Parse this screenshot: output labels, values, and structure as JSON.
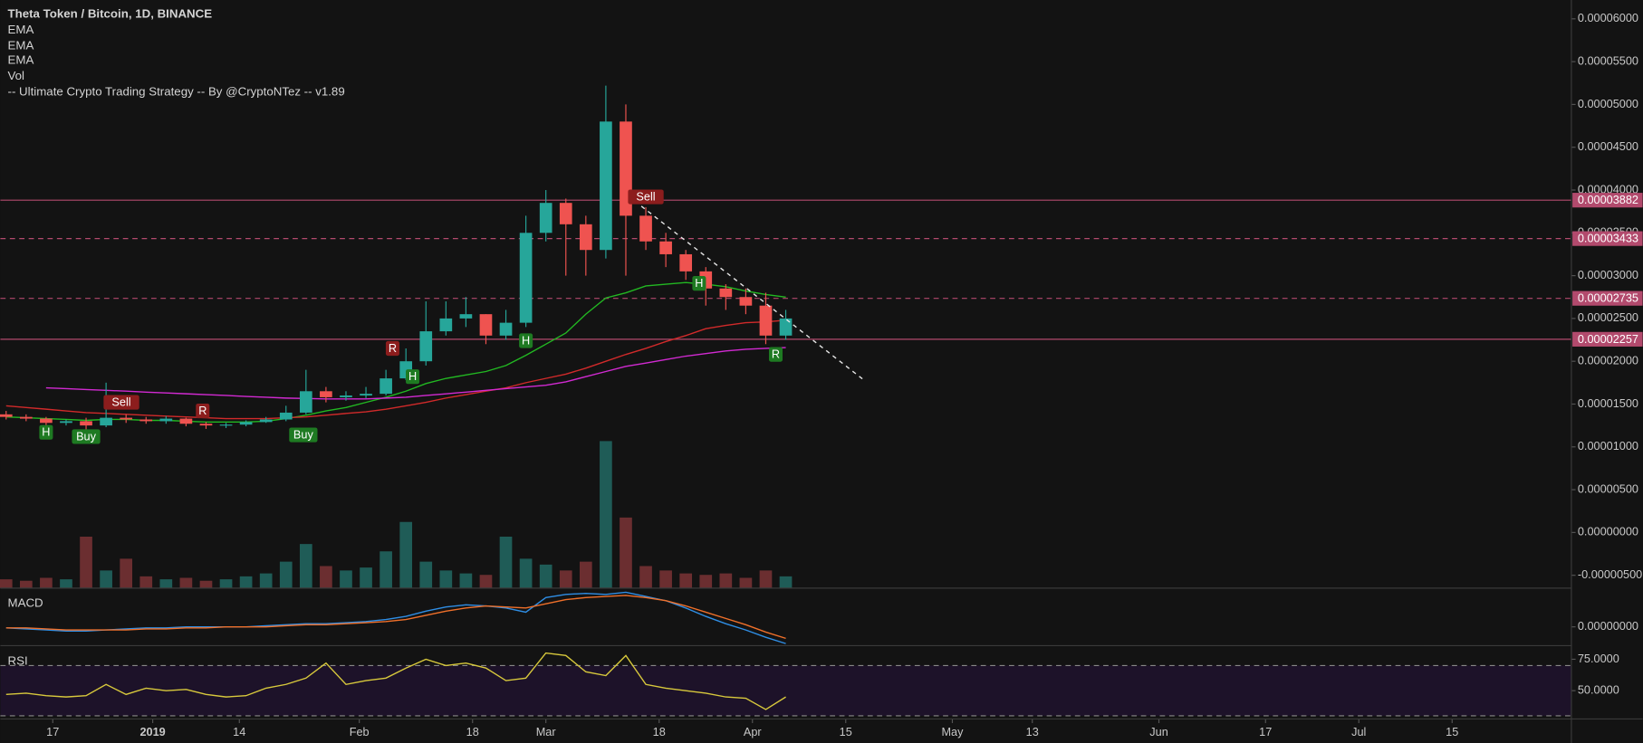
{
  "chart_data": [
    {
      "type": "candlestick",
      "title": "Theta Token / Bitcoin, 1D, BINANCE",
      "xlim": [
        -7.86,
        227.9
      ],
      "ylim": [
        -6.5e-06,
        6.22e-05
      ],
      "up_color": "#26a69a",
      "down_color": "#ef5350",
      "x": [
        -7,
        -4,
        -1,
        2,
        5,
        8,
        11,
        14,
        17,
        20,
        23,
        26,
        29,
        32,
        35,
        38,
        41,
        44,
        47,
        50,
        53,
        56,
        59,
        62,
        65,
        68,
        71,
        74,
        77,
        80,
        83,
        86,
        89,
        92,
        95,
        98,
        101,
        104,
        107,
        110
      ],
      "open": [
        1.38e-05,
        1.35e-05,
        1.33e-05,
        1.28e-05,
        1.3e-05,
        1.25e-05,
        1.34e-05,
        1.32e-05,
        1.3e-05,
        1.33e-05,
        1.27e-05,
        1.25e-05,
        1.26e-05,
        1.29e-05,
        1.32e-05,
        1.4e-05,
        1.65e-05,
        1.58e-05,
        1.6e-05,
        1.62e-05,
        1.8e-05,
        2e-05,
        2.35e-05,
        2.5e-05,
        2.55e-05,
        2.3e-05,
        2.45e-05,
        3.5e-05,
        3.85e-05,
        3.6e-05,
        3.3e-05,
        4.8e-05,
        3.7e-05,
        3.4e-05,
        3.25e-05,
        3.05e-05,
        2.85e-05,
        2.75e-05,
        2.65e-05,
        2.3e-05
      ],
      "high": [
        1.42e-05,
        1.38e-05,
        1.35e-05,
        1.32e-05,
        1.34e-05,
        1.75e-05,
        1.38e-05,
        1.35e-05,
        1.36e-05,
        1.34e-05,
        1.29e-05,
        1.28e-05,
        1.31e-05,
        1.35e-05,
        1.48e-05,
        1.9e-05,
        1.7e-05,
        1.65e-05,
        1.7e-05,
        1.9e-05,
        2.15e-05,
        2.7e-05,
        2.7e-05,
        2.75e-05,
        2.55e-05,
        2.6e-05,
        3.7e-05,
        4e-05,
        3.9e-05,
        3.7e-05,
        5.22e-05,
        5e-05,
        3.8e-05,
        3.5e-05,
        3.3e-05,
        3.1e-05,
        2.9e-05,
        2.85e-05,
        2.8e-05,
        2.6e-05
      ],
      "low": [
        1.32e-05,
        1.3e-05,
        1.24e-05,
        1.25e-05,
        1.18e-05,
        1.23e-05,
        1.28e-05,
        1.27e-05,
        1.27e-05,
        1.24e-05,
        1.21e-05,
        1.22e-05,
        1.24e-05,
        1.28e-05,
        1.3e-05,
        1.38e-05,
        1.52e-05,
        1.54e-05,
        1.57e-05,
        1.6e-05,
        1.78e-05,
        1.95e-05,
        2.3e-05,
        2.4e-05,
        2.2e-05,
        2.25e-05,
        2.4e-05,
        3.4e-05,
        3e-05,
        3e-05,
        3.2e-05,
        3e-05,
        3.3e-05,
        3.1e-05,
        2.95e-05,
        2.65e-05,
        2.6e-05,
        2.55e-05,
        2.2e-05,
        2.25e-05
      ],
      "close": [
        1.35e-05,
        1.33e-05,
        1.28e-05,
        1.3e-05,
        1.25e-05,
        1.34e-05,
        1.32e-05,
        1.3e-05,
        1.33e-05,
        1.27e-05,
        1.25e-05,
        1.26e-05,
        1.29e-05,
        1.32e-05,
        1.4e-05,
        1.65e-05,
        1.58e-05,
        1.6e-05,
        1.62e-05,
        1.8e-05,
        2e-05,
        2.35e-05,
        2.5e-05,
        2.55e-05,
        2.3e-05,
        2.45e-05,
        3.5e-05,
        3.85e-05,
        3.6e-05,
        3.3e-05,
        4.8e-05,
        3.7e-05,
        3.4e-05,
        3.25e-05,
        3.05e-05,
        2.85e-05,
        2.75e-05,
        2.65e-05,
        2.3e-05,
        2.5e-05
      ],
      "series": [
        {
          "name": "EMA",
          "color": "#22b822",
          "values": [
            1.35e-05,
            1.34e-05,
            1.33e-05,
            1.32e-05,
            1.31e-05,
            1.32e-05,
            1.32e-05,
            1.31e-05,
            1.31e-05,
            1.3e-05,
            1.29e-05,
            1.29e-05,
            1.29e-05,
            1.3e-05,
            1.33e-05,
            1.37e-05,
            1.42e-05,
            1.46e-05,
            1.52e-05,
            1.58e-05,
            1.65e-05,
            1.74e-05,
            1.8e-05,
            1.84e-05,
            1.88e-05,
            1.95e-05,
            2.07e-05,
            2.2e-05,
            2.33e-05,
            2.55e-05,
            2.74e-05,
            2.8e-05,
            2.88e-05,
            2.9e-05,
            2.92e-05,
            2.9e-05,
            2.87e-05,
            2.82e-05,
            2.78e-05,
            2.75e-05
          ]
        },
        {
          "name": "EMA",
          "color": "#d12a2a",
          "values": [
            1.48e-05,
            1.46e-05,
            1.44e-05,
            1.42e-05,
            1.4e-05,
            1.39e-05,
            1.38e-05,
            1.37e-05,
            1.36e-05,
            1.35e-05,
            1.34e-05,
            1.33e-05,
            1.33e-05,
            1.33e-05,
            1.34e-05,
            1.35e-05,
            1.37e-05,
            1.39e-05,
            1.41e-05,
            1.44e-05,
            1.48e-05,
            1.52e-05,
            1.57e-05,
            1.61e-05,
            1.65e-05,
            1.69e-05,
            1.75e-05,
            1.8e-05,
            1.85e-05,
            1.92e-05,
            2e-05,
            2.08e-05,
            2.15e-05,
            2.23e-05,
            2.3e-05,
            2.38e-05,
            2.42e-05,
            2.45e-05,
            2.46e-05,
            2.48e-05
          ]
        },
        {
          "name": "EMA",
          "color": "#d22ad2",
          "values": [
            null,
            null,
            1.69e-05,
            1.68e-05,
            1.67e-05,
            1.66e-05,
            1.65e-05,
            1.64e-05,
            1.63e-05,
            1.62e-05,
            1.61e-05,
            1.6e-05,
            1.59e-05,
            1.58e-05,
            1.57e-05,
            1.565e-05,
            1.56e-05,
            1.56e-05,
            1.56e-05,
            1.57e-05,
            1.58e-05,
            1.6e-05,
            1.62e-05,
            1.64e-05,
            1.66e-05,
            1.68e-05,
            1.7e-05,
            1.72e-05,
            1.76e-05,
            1.82e-05,
            1.88e-05,
            1.94e-05,
            1.98e-05,
            2.02e-05,
            2.06e-05,
            2.09e-05,
            2.12e-05,
            2.14e-05,
            2.15e-05,
            2.16e-05
          ]
        }
      ],
      "volume": {
        "name": "Vol",
        "ylim": [
          0,
          400
        ],
        "up_color": "#1f5c57",
        "down_color": "#6b2e30",
        "values": [
          6,
          5,
          7,
          6,
          35,
          12,
          20,
          8,
          6,
          7,
          5,
          6,
          8,
          10,
          18,
          30,
          15,
          12,
          14,
          25,
          45,
          18,
          12,
          10,
          9,
          35,
          20,
          16,
          12,
          18,
          100,
          48,
          15,
          12,
          10,
          9,
          10,
          7,
          12,
          8
        ]
      },
      "strategy": {
        "name": "-- Ultimate Crypto Trading Strategy -- By @CryptoNTez -- v1.89",
        "signals": [
          {
            "label": "H",
            "x": -1,
            "price": 1.17e-05,
            "color": "#1e7a22"
          },
          {
            "label": "Buy",
            "x": 5,
            "price": 1.12e-05,
            "color": "#1e7a22"
          },
          {
            "label": "Sell",
            "x": 10.3,
            "price": 1.52e-05,
            "color": "#8c1d1d"
          },
          {
            "label": "R",
            "x": 22.5,
            "price": 1.42e-05,
            "color": "#8c1d1d"
          },
          {
            "label": "Buy",
            "x": 37.6,
            "price": 1.14e-05,
            "color": "#1e7a22"
          },
          {
            "label": "R",
            "x": 51,
            "price": 2.15e-05,
            "color": "#8c1d1d"
          },
          {
            "label": "H",
            "x": 54,
            "price": 1.82e-05,
            "color": "#1e7a22"
          },
          {
            "label": "H",
            "x": 71,
            "price": 2.24e-05,
            "color": "#1e7a22"
          },
          {
            "label": "Sell",
            "x": 89,
            "price": 3.92e-05,
            "color": "#8c1d1d"
          },
          {
            "label": "H",
            "x": 97,
            "price": 2.91e-05,
            "color": "#1e7a22"
          },
          {
            "label": "R",
            "x": 108.5,
            "price": 2.08e-05,
            "color": "#1e7a22"
          }
        ]
      },
      "levels": [
        {
          "value": 3.882e-05,
          "style": "solid"
        },
        {
          "value": 3.433e-05,
          "style": "dashed"
        },
        {
          "value": 2.735e-05,
          "style": "dashed"
        },
        {
          "value": 2.257e-05,
          "style": "solid"
        }
      ],
      "level_color": "#b24a6d",
      "yticks": [
        {
          "value": 6e-05,
          "label": "0.00006000"
        },
        {
          "value": 5.5e-05,
          "label": "0.00005500"
        },
        {
          "value": 5e-05,
          "label": "0.00005000"
        },
        {
          "value": 4.5e-05,
          "label": "0.00004500"
        },
        {
          "value": 4e-05,
          "label": "0.00004000"
        },
        {
          "value": 3.5e-05,
          "label": "0.00003500"
        },
        {
          "value": 3e-05,
          "label": "0.00003000"
        },
        {
          "value": 2.5e-05,
          "label": "0.00002500"
        },
        {
          "value": 2e-05,
          "label": "0.00002000"
        },
        {
          "value": 1.5e-05,
          "label": "0.00001500"
        },
        {
          "value": 1e-05,
          "label": "0.00001000"
        },
        {
          "value": 5e-06,
          "label": "0.00000500"
        },
        {
          "value": 0,
          "label": "0.00000000"
        },
        {
          "value": -5e-06,
          "label": "-0.00000500"
        }
      ]
    },
    {
      "type": "line",
      "title": "MACD",
      "xlim": [
        -7.86,
        227.9
      ],
      "ylim": [
        -1.8e-06,
        3.7e-06
      ],
      "x": [
        -7,
        -4,
        -1,
        2,
        5,
        8,
        11,
        14,
        17,
        20,
        23,
        26,
        29,
        32,
        35,
        38,
        41,
        44,
        47,
        50,
        53,
        56,
        59,
        62,
        65,
        68,
        71,
        74,
        77,
        80,
        83,
        86,
        89,
        92,
        95,
        98,
        101,
        104,
        107,
        110
      ],
      "series": [
        {
          "color": "#2f8ee5",
          "values": [
            -1e-07,
            -2e-07,
            -3e-07,
            -4e-07,
            -4e-07,
            -3e-07,
            -2e-07,
            -1e-07,
            -1e-07,
            0,
            0,
            0,
            0,
            1e-07,
            2e-07,
            3e-07,
            3e-07,
            4e-07,
            5e-07,
            7e-07,
            1e-06,
            1.5e-06,
            1.9e-06,
            2.1e-06,
            2e-06,
            1.8e-06,
            1.4e-06,
            2.8e-06,
            3.1e-06,
            3.2e-06,
            3.1e-06,
            3.3e-06,
            2.9e-06,
            2.5e-06,
            1.8e-06,
            1e-06,
            3e-07,
            -3e-07,
            -1e-06,
            -1.6e-06
          ]
        },
        {
          "color": "#f0702a",
          "values": [
            -1e-07,
            -1e-07,
            -2e-07,
            -3e-07,
            -3e-07,
            -3e-07,
            -3e-07,
            -2e-07,
            -2e-07,
            -1e-07,
            -1e-07,
            0,
            0,
            0,
            1e-07,
            2e-07,
            2e-07,
            3e-07,
            4e-07,
            5e-07,
            7e-07,
            1.1e-06,
            1.5e-06,
            1.8e-06,
            2e-06,
            1.9e-06,
            1.8e-06,
            2.2e-06,
            2.6e-06,
            2.8e-06,
            2.9e-06,
            3e-06,
            2.8e-06,
            2.5e-06,
            2e-06,
            1.4e-06,
            8e-07,
            2e-07,
            -5e-07,
            -1.1e-06
          ]
        }
      ],
      "yticks": [
        {
          "value": 0,
          "label": "0.00000000"
        }
      ]
    },
    {
      "type": "line",
      "title": "RSI",
      "xlim": [
        -7.86,
        227.9
      ],
      "ylim": [
        27.5,
        85.8
      ],
      "x": [
        -7,
        -4,
        -1,
        2,
        5,
        8,
        11,
        14,
        17,
        20,
        23,
        26,
        29,
        32,
        35,
        38,
        41,
        44,
        47,
        50,
        53,
        56,
        59,
        62,
        65,
        68,
        71,
        74,
        77,
        80,
        83,
        86,
        89,
        92,
        95,
        98,
        101,
        104,
        107,
        110
      ],
      "series": [
        {
          "color": "#d8c93c",
          "values": [
            47,
            48,
            46,
            45,
            46,
            55,
            47,
            52,
            50,
            51,
            47,
            45,
            46,
            52,
            55,
            60,
            72,
            55,
            58,
            60,
            68,
            75,
            70,
            72,
            68,
            58,
            60,
            80,
            78,
            65,
            62,
            78,
            55,
            52,
            50,
            48,
            45,
            44,
            35,
            45
          ]
        }
      ],
      "band": [
        30,
        70
      ],
      "band_color": "#1d1229",
      "yticks": [
        {
          "value": 75,
          "label": "75.0000"
        },
        {
          "value": 50,
          "label": "50.0000"
        }
      ],
      "xticks": [
        {
          "value": 0,
          "label": "17"
        },
        {
          "value": 15,
          "label": "2019"
        },
        {
          "value": 28,
          "label": "14"
        },
        {
          "value": 46,
          "label": "Feb"
        },
        {
          "value": 63,
          "label": "18"
        },
        {
          "value": 74,
          "label": "Mar"
        },
        {
          "value": 91,
          "label": "18"
        },
        {
          "value": 105,
          "label": "Apr"
        },
        {
          "value": 119,
          "label": "15"
        },
        {
          "value": 135,
          "label": "May"
        },
        {
          "value": 147,
          "label": "13"
        },
        {
          "value": 166,
          "label": "Jun"
        },
        {
          "value": 182,
          "label": "17"
        },
        {
          "value": 196,
          "label": "Jul"
        },
        {
          "value": 210,
          "label": "15"
        }
      ]
    }
  ]
}
